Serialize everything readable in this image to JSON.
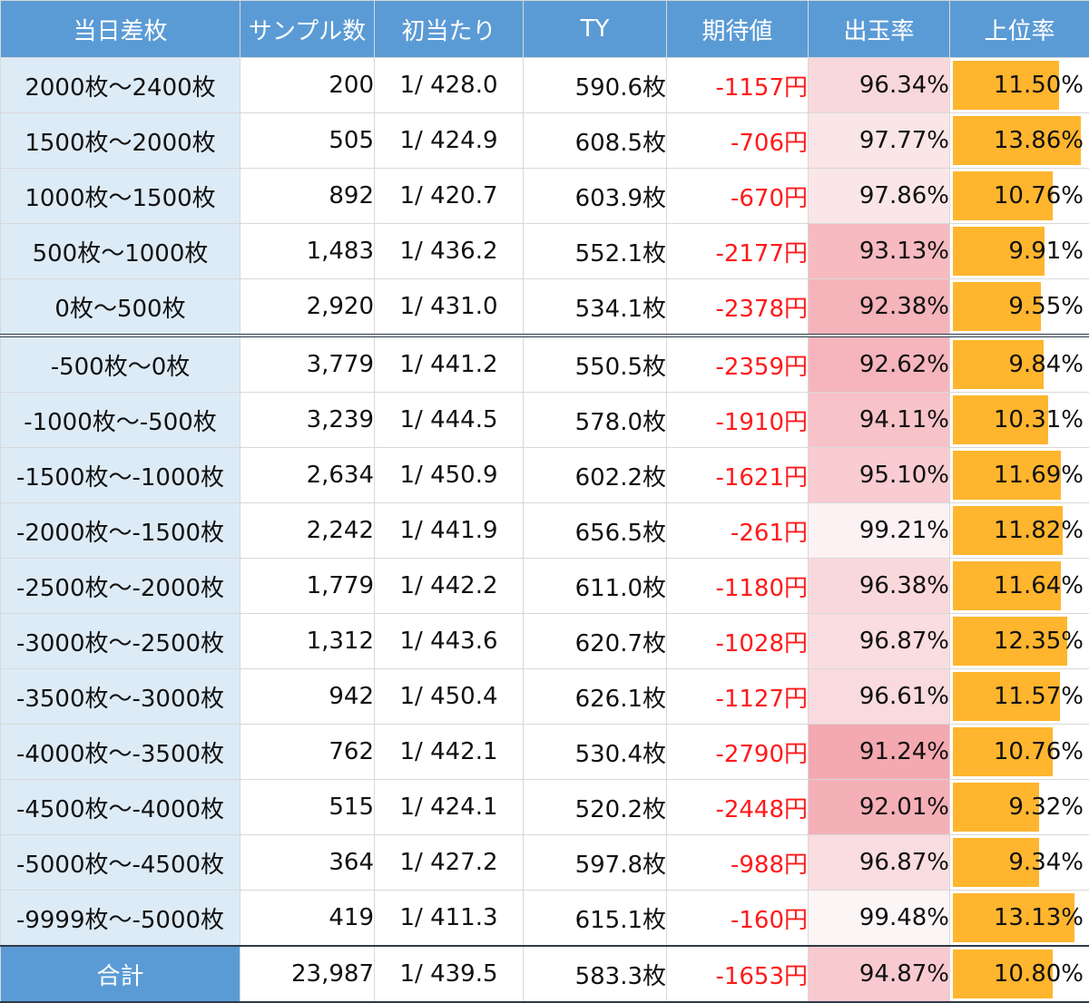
{
  "headers": [
    "当日差枚",
    "サンプル数",
    "初当たり",
    "TY",
    "期待値",
    "出玉率",
    "上位率"
  ],
  "rows": [
    {
      "range": "2000枚～2400枚",
      "samples": "200",
      "hit": "1/ 428.0",
      "ty": "590.6枚",
      "ev": "-1157円",
      "rate": "96.34%",
      "rate_value": 96.34,
      "top": "11.50%",
      "top_value": 11.5
    },
    {
      "range": "1500枚～2000枚",
      "samples": "505",
      "hit": "1/ 424.9",
      "ty": "608.5枚",
      "ev": "-706円",
      "rate": "97.77%",
      "rate_value": 97.77,
      "top": "13.86%",
      "top_value": 13.86
    },
    {
      "range": "1000枚～1500枚",
      "samples": "892",
      "hit": "1/ 420.7",
      "ty": "603.9枚",
      "ev": "-670円",
      "rate": "97.86%",
      "rate_value": 97.86,
      "top": "10.76%",
      "top_value": 10.76
    },
    {
      "range": "500枚～1000枚",
      "samples": "1,483",
      "hit": "1/ 436.2",
      "ty": "552.1枚",
      "ev": "-2177円",
      "rate": "93.13%",
      "rate_value": 93.13,
      "top": "9.91%",
      "top_value": 9.91
    },
    {
      "range": "0枚～500枚",
      "samples": "2,920",
      "hit": "1/ 431.0",
      "ty": "534.1枚",
      "ev": "-2378円",
      "rate": "92.38%",
      "rate_value": 92.38,
      "top": "9.55%",
      "top_value": 9.55
    },
    {
      "range": "-500枚～0枚",
      "samples": "3,779",
      "hit": "1/ 441.2",
      "ty": "550.5枚",
      "ev": "-2359円",
      "rate": "92.62%",
      "rate_value": 92.62,
      "top": "9.84%",
      "top_value": 9.84
    },
    {
      "range": "-1000枚～-500枚",
      "samples": "3,239",
      "hit": "1/ 444.5",
      "ty": "578.0枚",
      "ev": "-1910円",
      "rate": "94.11%",
      "rate_value": 94.11,
      "top": "10.31%",
      "top_value": 10.31
    },
    {
      "range": "-1500枚～-1000枚",
      "samples": "2,634",
      "hit": "1/ 450.9",
      "ty": "602.2枚",
      "ev": "-1621円",
      "rate": "95.10%",
      "rate_value": 95.1,
      "top": "11.69%",
      "top_value": 11.69
    },
    {
      "range": "-2000枚～-1500枚",
      "samples": "2,242",
      "hit": "1/ 441.9",
      "ty": "656.5枚",
      "ev": "-261円",
      "rate": "99.21%",
      "rate_value": 99.21,
      "top": "11.82%",
      "top_value": 11.82
    },
    {
      "range": "-2500枚～-2000枚",
      "samples": "1,779",
      "hit": "1/ 442.2",
      "ty": "611.0枚",
      "ev": "-1180円",
      "rate": "96.38%",
      "rate_value": 96.38,
      "top": "11.64%",
      "top_value": 11.64
    },
    {
      "range": "-3000枚～-2500枚",
      "samples": "1,312",
      "hit": "1/ 443.6",
      "ty": "620.7枚",
      "ev": "-1028円",
      "rate": "96.87%",
      "rate_value": 96.87,
      "top": "12.35%",
      "top_value": 12.35
    },
    {
      "range": "-3500枚～-3000枚",
      "samples": "942",
      "hit": "1/ 450.4",
      "ty": "626.1枚",
      "ev": "-1127円",
      "rate": "96.61%",
      "rate_value": 96.61,
      "top": "11.57%",
      "top_value": 11.57
    },
    {
      "range": "-4000枚～-3500枚",
      "samples": "762",
      "hit": "1/ 442.1",
      "ty": "530.4枚",
      "ev": "-2790円",
      "rate": "91.24%",
      "rate_value": 91.24,
      "top": "10.76%",
      "top_value": 10.76
    },
    {
      "range": "-4500枚～-4000枚",
      "samples": "515",
      "hit": "1/ 424.1",
      "ty": "520.2枚",
      "ev": "-2448円",
      "rate": "92.01%",
      "rate_value": 92.01,
      "top": "9.32%",
      "top_value": 9.32
    },
    {
      "range": "-5000枚～-4500枚",
      "samples": "364",
      "hit": "1/ 427.2",
      "ty": "597.8枚",
      "ev": "-988円",
      "rate": "96.87%",
      "rate_value": 96.87,
      "top": "9.34%",
      "top_value": 9.34
    },
    {
      "range": "-9999枚～-5000枚",
      "samples": "419",
      "hit": "1/ 411.3",
      "ty": "615.1枚",
      "ev": "-160円",
      "rate": "99.48%",
      "rate_value": 99.48,
      "top": "13.13%",
      "top_value": 13.13
    }
  ],
  "total": {
    "range": "合計",
    "samples": "23,987",
    "hit": "1/ 439.5",
    "ty": "583.3枚",
    "ev": "-1653円",
    "rate": "94.87%",
    "rate_value": 94.87,
    "top": "10.80%",
    "top_value": 10.8
  },
  "colors": {
    "header": "#5b9bd5",
    "range_cell": "#ddebf7",
    "negative": "#ff1a1a",
    "bar": "#ffb52e",
    "heat_high": "#f4a6ae"
  }
}
